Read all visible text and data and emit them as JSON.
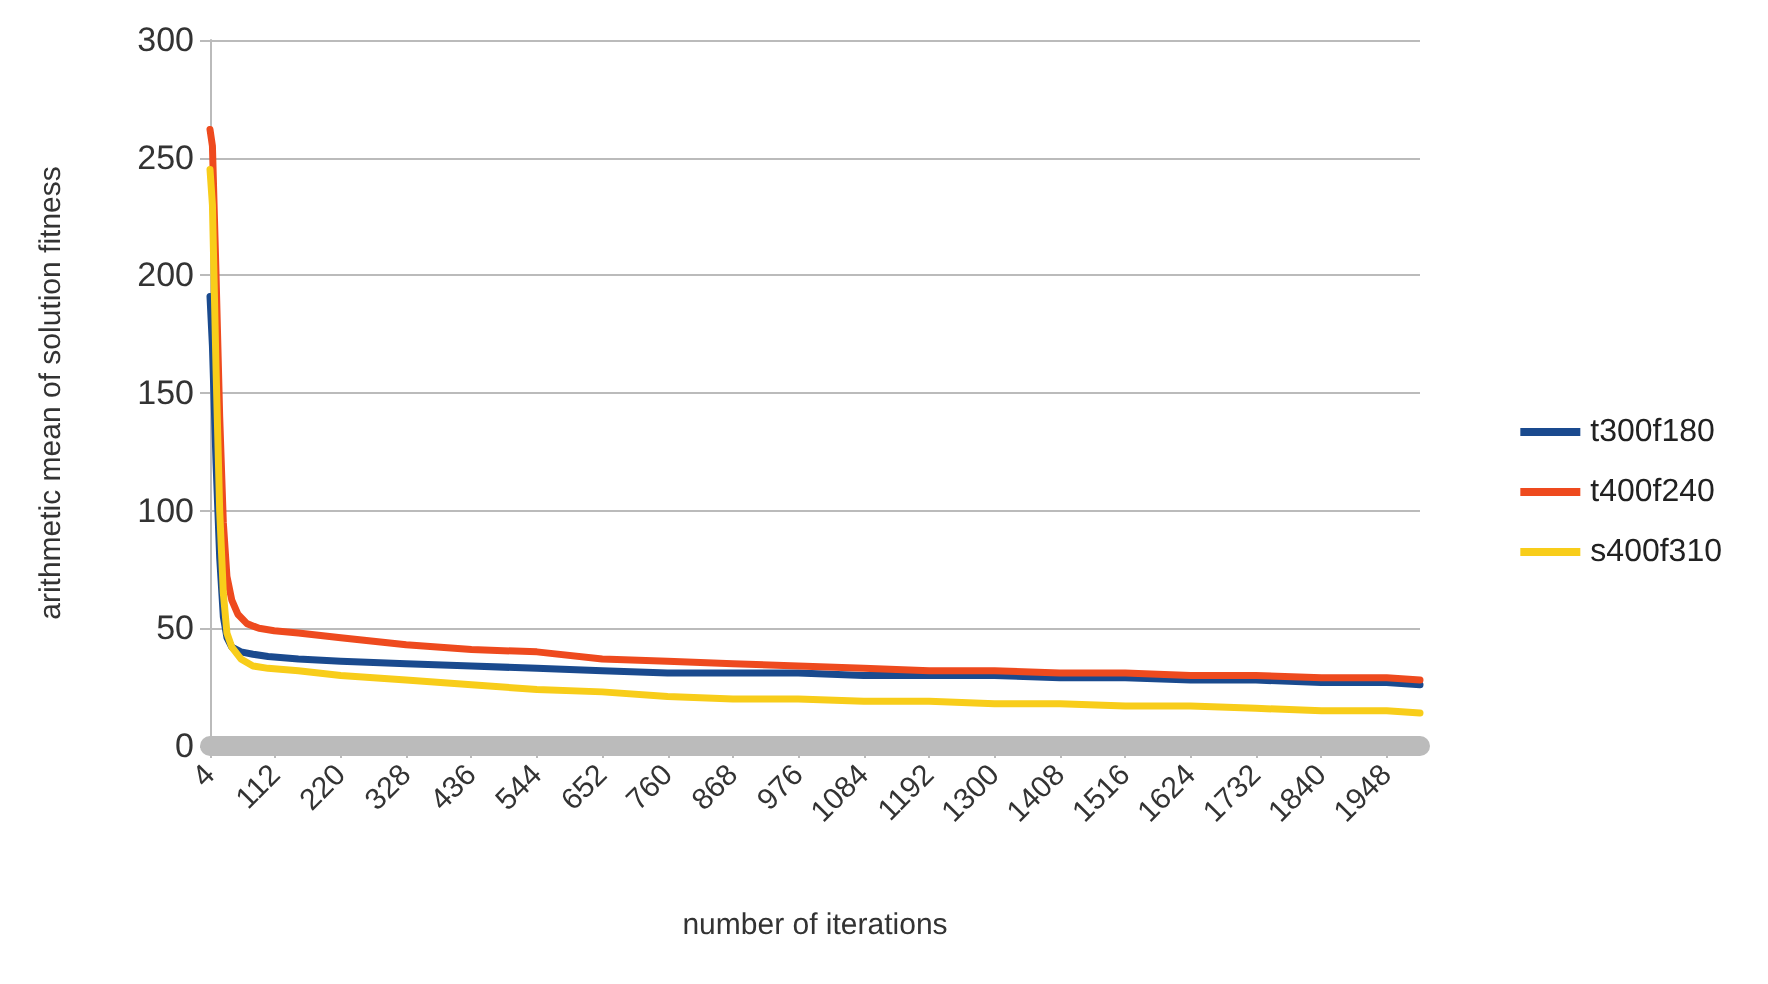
{
  "chart_data": {
    "type": "line",
    "xlabel": "number of iterations",
    "ylabel": "arithmetic mean of solution fitness",
    "xlim": [
      4,
      2003
    ],
    "ylim": [
      0,
      300
    ],
    "yticks": [
      0,
      50,
      100,
      150,
      200,
      250,
      300
    ],
    "xticks": [
      4,
      112,
      220,
      328,
      436,
      544,
      652,
      760,
      868,
      976,
      1084,
      1192,
      1300,
      1408,
      1516,
      1624,
      1732,
      1840,
      1948
    ],
    "grid": "y",
    "legend": "right",
    "marker": "none",
    "line_style": "solid",
    "series": [
      {
        "name": "t300f180",
        "color": "#1a4a8e",
        "x": [
          4,
          8,
          14,
          20,
          26,
          32,
          40,
          55,
          75,
          100,
          150,
          220,
          328,
          436,
          544,
          652,
          760,
          868,
          976,
          1084,
          1192,
          1300,
          1408,
          1516,
          1624,
          1732,
          1840,
          1948,
          2003
        ],
        "values": [
          191,
          170,
          120,
          80,
          55,
          46,
          42,
          40,
          39,
          38,
          37,
          36,
          35,
          34,
          33,
          32,
          31,
          31,
          31,
          30,
          30,
          30,
          29,
          29,
          28,
          28,
          27,
          27,
          26
        ]
      },
      {
        "name": "t400f240",
        "color": "#ee4a1e",
        "x": [
          4,
          8,
          14,
          20,
          26,
          32,
          40,
          50,
          65,
          85,
          110,
          150,
          220,
          328,
          436,
          544,
          652,
          760,
          868,
          976,
          1084,
          1192,
          1300,
          1408,
          1516,
          1624,
          1732,
          1840,
          1948,
          2003
        ],
        "values": [
          262,
          255,
          200,
          140,
          95,
          72,
          62,
          56,
          52,
          50,
          49,
          48,
          46,
          43,
          41,
          40,
          37,
          36,
          35,
          34,
          33,
          32,
          32,
          31,
          31,
          30,
          30,
          29,
          29,
          28
        ]
      },
      {
        "name": "s400f310",
        "color": "#f8cd1a",
        "x": [
          4,
          8,
          14,
          20,
          26,
          32,
          40,
          55,
          75,
          100,
          150,
          220,
          328,
          436,
          544,
          652,
          760,
          868,
          976,
          1084,
          1192,
          1300,
          1408,
          1516,
          1624,
          1732,
          1840,
          1948,
          2003
        ],
        "values": [
          245,
          230,
          160,
          100,
          65,
          48,
          42,
          37,
          34,
          33,
          32,
          30,
          28,
          26,
          24,
          23,
          21,
          20,
          20,
          19,
          19,
          18,
          18,
          17,
          17,
          16,
          15,
          15,
          14
        ]
      }
    ]
  }
}
